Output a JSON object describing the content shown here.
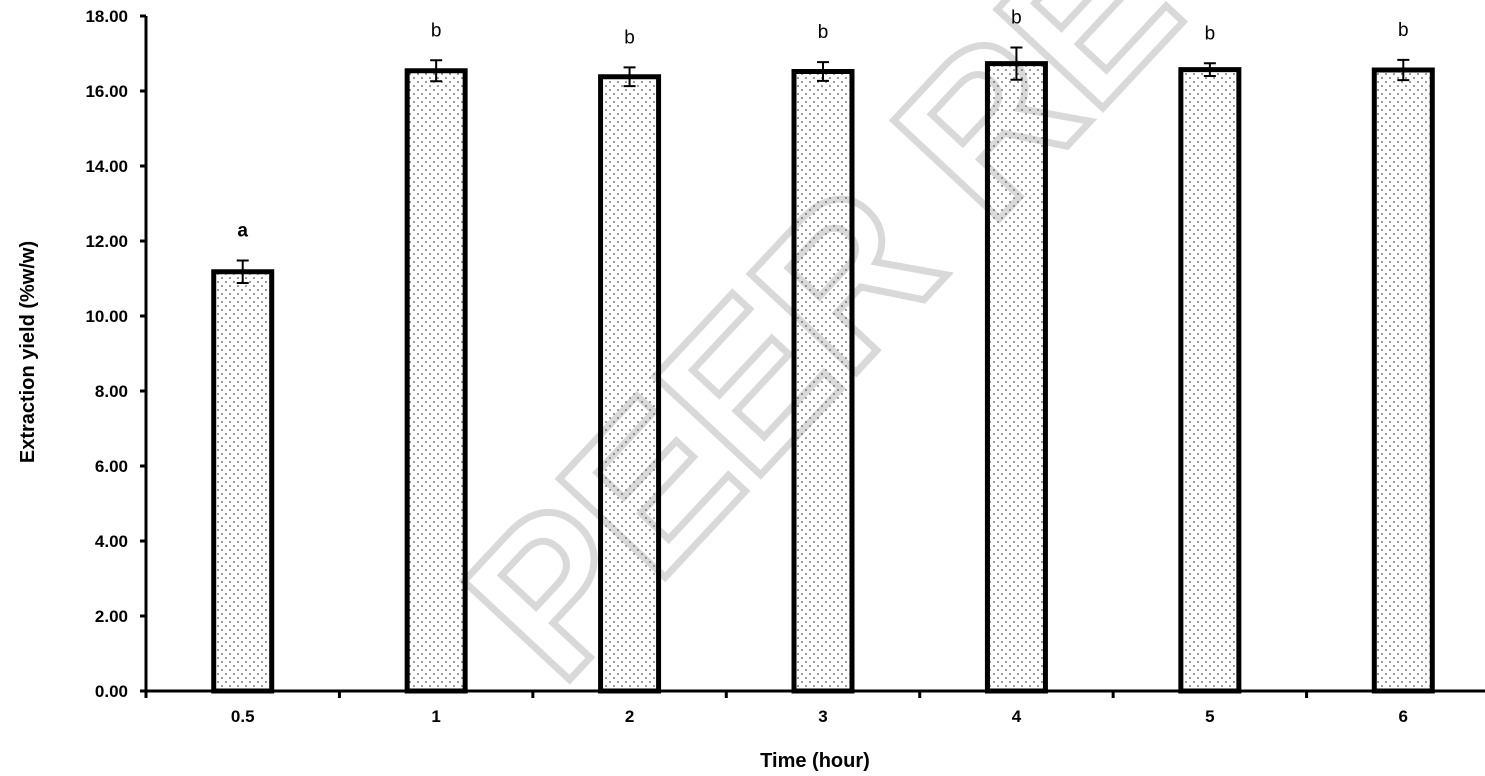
{
  "watermark": "PEER REVIEW",
  "chart_data": {
    "type": "bar",
    "title": "",
    "xlabel": "Time (hour)",
    "ylabel": "Extraction yield (%w/w)",
    "categories": [
      "0.5",
      "1",
      "2",
      "3",
      "4",
      "5",
      "6"
    ],
    "values": [
      11.18,
      16.54,
      16.38,
      16.52,
      16.73,
      16.57,
      16.56
    ],
    "errors": [
      0.3,
      0.28,
      0.25,
      0.25,
      0.43,
      0.17,
      0.27
    ],
    "significance": [
      "a",
      "b",
      "b",
      "b",
      "b",
      "b",
      "b"
    ],
    "ylim": [
      0,
      18
    ],
    "yticks": [
      "0.00",
      "2.00",
      "4.00",
      "6.00",
      "8.00",
      "10.00",
      "12.00",
      "14.00",
      "16.00",
      "18.00"
    ],
    "grid": false,
    "legend": "none",
    "bar_fill": "dotted pattern",
    "colors": {
      "bar_edge": "#000000",
      "bar_dots": "#555555",
      "watermark": "#d9d9d9"
    }
  }
}
